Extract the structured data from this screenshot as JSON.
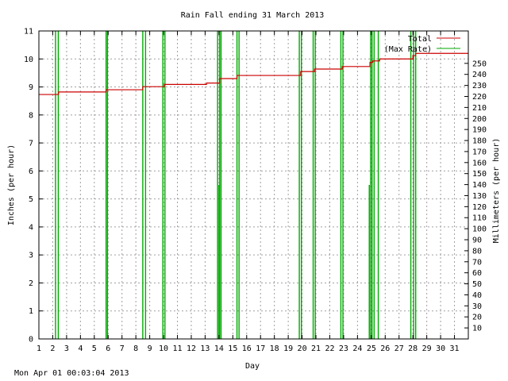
{
  "chart_data": {
    "type": "line",
    "title": "Rain Fall ending 31 March 2013",
    "xlabel": "Day",
    "ylabel": "Inches (per hour)",
    "y2label": "Millimeters (per hour)",
    "xlim": [
      1,
      32
    ],
    "ylim": [
      0,
      11
    ],
    "y2lim": [
      0,
      279.4
    ],
    "x_ticks": [
      1,
      2,
      3,
      4,
      5,
      6,
      7,
      8,
      9,
      10,
      11,
      12,
      13,
      14,
      15,
      16,
      17,
      18,
      19,
      20,
      21,
      22,
      23,
      24,
      25,
      26,
      27,
      28,
      29,
      30,
      31
    ],
    "y_ticks": [
      0,
      1,
      2,
      3,
      4,
      5,
      6,
      7,
      8,
      9,
      10,
      11
    ],
    "y2_ticks": [
      10,
      20,
      30,
      40,
      50,
      60,
      70,
      80,
      90,
      100,
      110,
      120,
      130,
      140,
      150,
      160,
      170,
      180,
      190,
      200,
      210,
      220,
      230,
      240,
      250
    ],
    "grid": true,
    "legend_position": "top-right",
    "colors": {
      "total": "#cc0000",
      "max_rate": "#00aa00",
      "grid": "#a0a0a0"
    },
    "series": [
      {
        "name": "Total",
        "step": true,
        "points": [
          [
            1.0,
            8.73
          ],
          [
            2.42,
            8.82
          ],
          [
            5.85,
            8.9
          ],
          [
            8.5,
            9.01
          ],
          [
            10.05,
            9.09
          ],
          [
            13.1,
            9.14
          ],
          [
            14.05,
            9.3
          ],
          [
            15.3,
            9.41
          ],
          [
            19.9,
            9.55
          ],
          [
            20.9,
            9.64
          ],
          [
            22.9,
            9.73
          ],
          [
            24.9,
            9.88
          ],
          [
            25.1,
            9.93
          ],
          [
            25.6,
            10.0
          ],
          [
            28.0,
            10.12
          ],
          [
            28.2,
            10.2
          ],
          [
            32.0,
            10.2
          ]
        ]
      },
      {
        "name": "(Max Rate)",
        "spikes": [
          [
            2.2,
            11
          ],
          [
            2.4,
            11
          ],
          [
            5.85,
            11
          ],
          [
            5.95,
            11
          ],
          [
            8.5,
            11
          ],
          [
            8.7,
            11
          ],
          [
            9.95,
            11
          ],
          [
            10.1,
            11
          ],
          [
            13.9,
            11
          ],
          [
            14.0,
            5.5
          ],
          [
            14.05,
            11
          ],
          [
            14.15,
            11
          ],
          [
            15.3,
            11
          ],
          [
            15.45,
            11
          ],
          [
            19.8,
            11
          ],
          [
            19.95,
            11
          ],
          [
            20.8,
            11
          ],
          [
            20.95,
            11
          ],
          [
            22.8,
            11
          ],
          [
            22.95,
            11
          ],
          [
            24.85,
            5.5
          ],
          [
            24.95,
            11
          ],
          [
            25.05,
            11
          ],
          [
            25.2,
            11
          ],
          [
            25.5,
            11
          ],
          [
            27.85,
            11
          ],
          [
            28.05,
            11
          ],
          [
            28.2,
            11
          ]
        ]
      }
    ]
  },
  "footer": {
    "timestamp": "Mon Apr 01 00:03:04 2013"
  }
}
